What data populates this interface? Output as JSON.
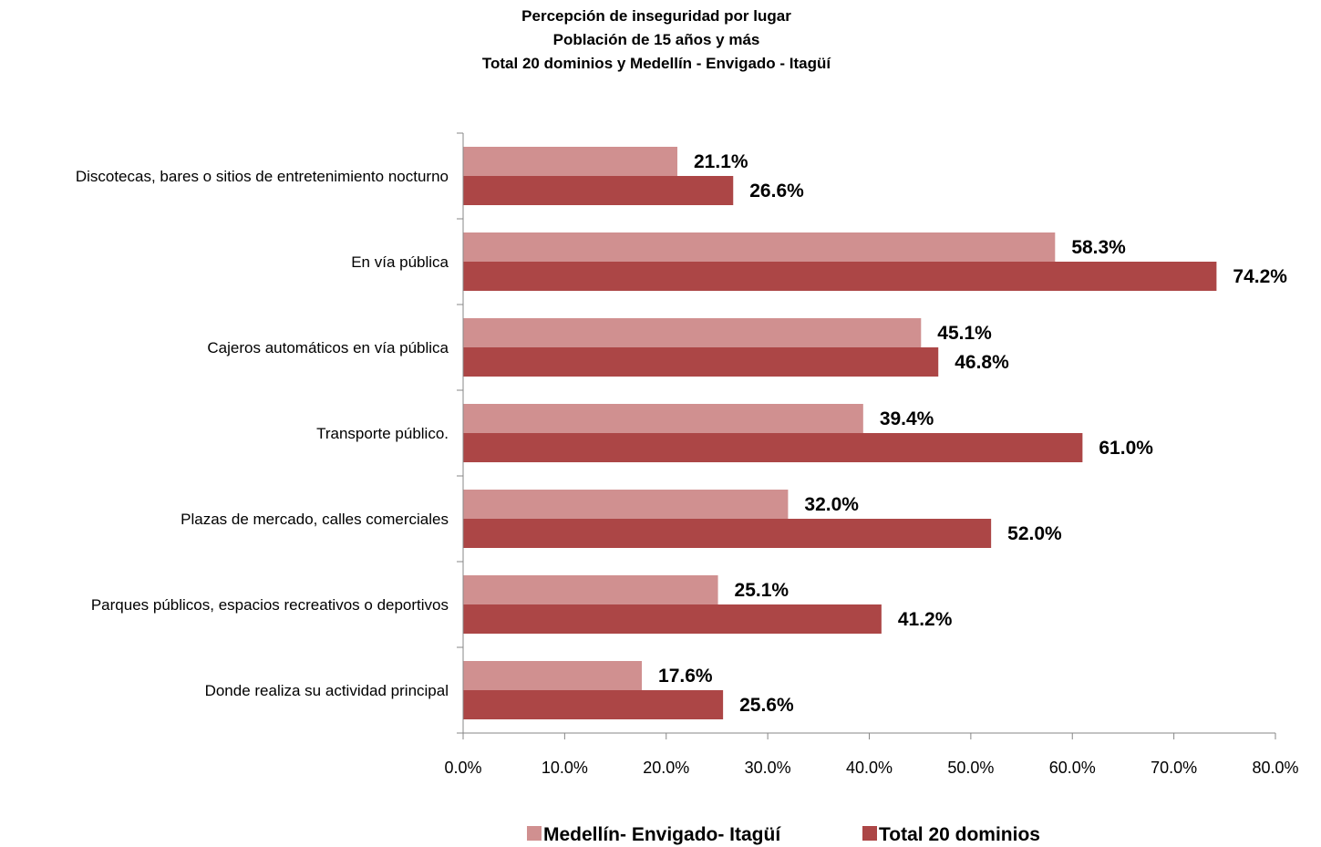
{
  "chart_data": {
    "type": "bar",
    "orientation": "horizontal",
    "title": [
      "Percepción de inseguridad por lugar",
      "Población de 15 años y más",
      "Total 20 dominios y Medellín - Envigado - Itagüí"
    ],
    "categories": [
      "Discotecas, bares o sitios de entretenimiento nocturno",
      "En vía pública",
      "Cajeros automáticos en vía pública",
      "Transporte público.",
      "Plazas de mercado, calles comerciales",
      "Parques públicos, espacios recreativos o deportivos",
      "Donde realiza su actividad principal"
    ],
    "series": [
      {
        "name": "Medellín- Envigado- Itagüí",
        "color": "#d09090",
        "values": [
          21.1,
          58.3,
          45.1,
          39.4,
          32.0,
          25.1,
          17.6
        ],
        "labels": [
          "21.1%",
          "58.3%",
          "45.1%",
          "39.4%",
          "32.0%",
          "25.1%",
          "17.6%"
        ]
      },
      {
        "name": "Total 20 dominios",
        "color": "#ac4646",
        "values": [
          26.6,
          74.2,
          46.8,
          61.0,
          52.0,
          41.2,
          25.6
        ],
        "labels": [
          "26.6%",
          "74.2%",
          "46.8%",
          "61.0%",
          "52.0%",
          "41.2%",
          "25.6%"
        ]
      }
    ],
    "xlim": [
      0,
      80
    ],
    "x_ticks": [
      0,
      10,
      20,
      30,
      40,
      50,
      60,
      70,
      80
    ],
    "x_tick_labels": [
      "0.0%",
      "10.0%",
      "20.0%",
      "30.0%",
      "40.0%",
      "50.0%",
      "60.0%",
      "70.0%",
      "80.0%"
    ],
    "xlabel": "",
    "ylabel": "",
    "grid": false,
    "legend_position": "bottom"
  }
}
